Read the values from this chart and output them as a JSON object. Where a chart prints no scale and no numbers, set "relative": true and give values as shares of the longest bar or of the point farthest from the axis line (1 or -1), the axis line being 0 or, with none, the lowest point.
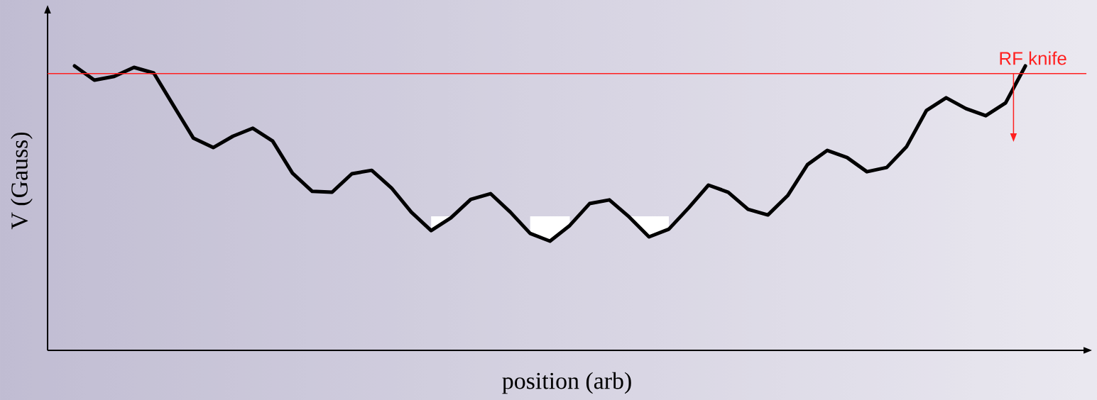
{
  "chart_data": {
    "type": "line",
    "relative": true,
    "xlabel": "position (arb)",
    "ylabel": "V (Gauss)",
    "categories": [
      null,
      null,
      null,
      null,
      null,
      null,
      null,
      null,
      null,
      null,
      null,
      null,
      null,
      null,
      null,
      null,
      null,
      null,
      null,
      null,
      null,
      null,
      null,
      null,
      null,
      null,
      null,
      null,
      null,
      null,
      null,
      null,
      null,
      null,
      null,
      null,
      null,
      null,
      null,
      null,
      null,
      null,
      null,
      null,
      null,
      null,
      null,
      null,
      null
    ],
    "series": [
      {
        "color": "#000000",
        "lower": [
          null,
          null,
          null,
          null,
          null,
          null,
          null,
          null,
          null,
          null,
          null,
          null,
          null,
          null,
          null,
          null,
          null,
          null,
          0.421,
          0.466,
          null,
          null,
          null,
          0.411,
          0.384,
          0.439,
          null,
          null,
          0.469,
          0.399,
          0.426,
          null,
          null,
          null,
          null,
          null,
          null,
          null,
          null,
          null,
          null,
          null,
          null,
          null,
          null,
          null,
          null,
          null,
          null
        ],
        "upper": [
          null,
          null,
          null,
          null,
          null,
          null,
          null,
          null,
          null,
          null,
          null,
          null,
          null,
          null,
          null,
          null,
          null,
          null,
          0.471,
          0.471,
          null,
          null,
          null,
          0.471,
          0.471,
          0.471,
          null,
          null,
          0.471,
          0.471,
          0.471,
          null,
          null,
          null,
          null,
          null,
          null,
          null,
          null,
          null,
          null,
          null,
          null,
          null,
          null,
          null,
          null,
          null,
          null
        ],
        "values": [
          1.0,
          0.95,
          0.963,
          0.995,
          0.975,
          0.86,
          0.746,
          0.713,
          0.753,
          0.781,
          0.736,
          0.623,
          0.559,
          0.556,
          0.621,
          0.633,
          0.571,
          0.486,
          0.421,
          0.466,
          0.531,
          0.551,
          0.486,
          0.411,
          0.384,
          0.439,
          0.516,
          0.529,
          0.469,
          0.399,
          0.426,
          0.501,
          0.581,
          0.556,
          0.496,
          0.476,
          0.544,
          0.653,
          0.703,
          0.678,
          0.628,
          0.643,
          0.716,
          0.843,
          0.888,
          0.85,
          0.825,
          0.87,
          1.0
        ]
      }
    ],
    "ref_lines": [
      {
        "axis": "y",
        "value": 0.973,
        "label": "RF knife",
        "color": "#ff2020"
      }
    ],
    "marker": "none",
    "line_style": "solid"
  }
}
